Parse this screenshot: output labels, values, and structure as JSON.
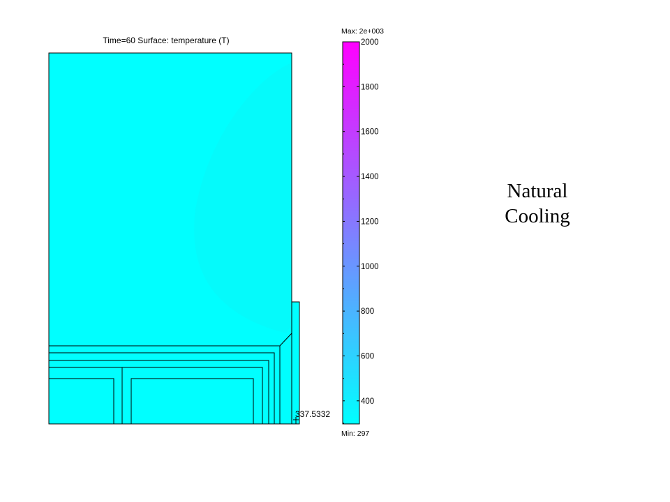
{
  "plot": {
    "title": "Time=60  Surface: temperature (T)",
    "probe_value": "337.5332",
    "field_color": "#00FFFF",
    "field_shade": "#0AF6F8"
  },
  "colorbar": {
    "max_label": "Max: 2e+003",
    "min_label": "Min: 297",
    "min_value": 297,
    "max_value": 2000,
    "ticks": [
      "2000",
      "1800",
      "1600",
      "1400",
      "1200",
      "1000",
      "800",
      "600",
      "400"
    ],
    "colors": [
      "#00FFFF",
      "#FF00FF"
    ]
  },
  "caption": {
    "line1": "Natural",
    "line2": "Cooling"
  }
}
